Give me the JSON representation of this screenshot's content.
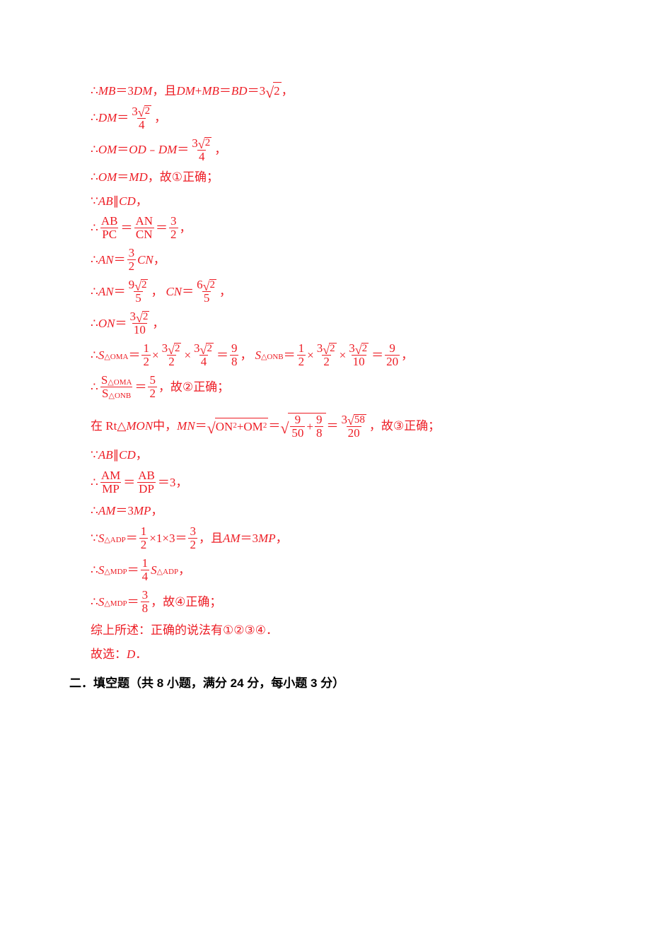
{
  "c": {
    "text_color": "#ed1c24",
    "header_color": "#000000",
    "bg": "#ffffff"
  },
  "t": {
    "l1a": "∴",
    "l1b": "MB",
    "l1c": "＝3",
    "l1d": "DM",
    "l1e": "，且 ",
    "l1f": "DM",
    "l1g": "+",
    "l1h": "MB",
    "l1i": "＝",
    "l1j": "BD",
    "l1k": "＝3",
    "l1_sqrt": "2",
    "l1l": "，",
    "l2a": "∴",
    "l2b": "DM",
    "l2c": "＝",
    "l2_num": "3",
    "l2_sqrt": "2",
    "l2_den": "4",
    "l2d": "，",
    "l3a": "∴",
    "l3b": "OM",
    "l3c": "＝",
    "l3d": "OD",
    "l3e": "﹣",
    "l3f": "DM",
    "l3g": "＝",
    "l3_num": "3",
    "l3_sqrt": "2",
    "l3_den": "4",
    "l3h": "，",
    "l4a": "∴",
    "l4b": "OM",
    "l4c": "＝",
    "l4d": "MD",
    "l4e": "，故 ",
    "l4f": "①",
    "l4g": " 正确；",
    "l5a": "∵",
    "l5b": "AB",
    "l5c": "∥",
    "l5d": "CD",
    "l5e": "，",
    "l6a": "∴",
    "l6_n1": "AB",
    "l6_d1": "PC",
    "l6b": "＝",
    "l6_n2": "AN",
    "l6_d2": "CN",
    "l6c": "＝",
    "l6_n3": "3",
    "l6_d3": "2",
    "l6d": "，",
    "l7a": "∴",
    "l7b": "AN",
    "l7c": "＝",
    "l7_n": "3",
    "l7_d": "2",
    "l7d": "CN",
    "l7e": "，",
    "l8a": "∴",
    "l8b": "AN",
    "l8c": "＝",
    "l8_n1": "9",
    "l8_s1": "2",
    "l8_d1": "5",
    "l8d": "，",
    "l8e": "CN",
    "l8f": "＝",
    "l8_n2": "6",
    "l8_s2": "2",
    "l8_d2": "5",
    "l8g": "，",
    "l9a": "∴",
    "l9b": "ON",
    "l9c": "＝",
    "l9_n": "3",
    "l9_s": "2",
    "l9_d": "10",
    "l9d": "，",
    "l10a": "∴",
    "l10b": "S",
    "l10sub1": "△OMA",
    "l10c": "＝",
    "l10_f1n": "1",
    "l10_f1d": "2",
    "l10d": "×",
    "l10_f2n": "3",
    "l10_f2s": "2",
    "l10_f2d": "2",
    "l10e": "×",
    "l10_f3n": "3",
    "l10_f3s": "2",
    "l10_f3d": "4",
    "l10f": "＝",
    "l10_f4n": "9",
    "l10_f4d": "8",
    "l10g": "，",
    "l10h": "S",
    "l10sub2": "△ONB",
    "l10i": "＝",
    "l10_f5n": "1",
    "l10_f5d": "2",
    "l10j": "×",
    "l10_f6n": "3",
    "l10_f6s": "2",
    "l10_f6d": "2",
    "l10k": "×",
    "l10_f7n": "3",
    "l10_f7s": "2",
    "l10_f7d": "10",
    "l10l": "＝",
    "l10_f8n": "9",
    "l10_f8d": "20",
    "l10m": "，",
    "l11a": "∴",
    "l11_n": "S",
    "l11_nsub": "△OMA",
    "l11_d": "S",
    "l11_dsub": "△ONB",
    "l11b": "＝",
    "l11_fn": "5",
    "l11_fd": "2",
    "l11c": "，故 ",
    "l11d": "②",
    "l11e": " 正确；",
    "l12a": "在 Rt",
    "l12b": "△",
    "l12c": "MON",
    "l12d": " 中，",
    "l12e": "MN",
    "l12f": "＝",
    "l12_r1a": "ON",
    "l12_r1sq": "2",
    "l12_r1p": "+",
    "l12_r1b": "OM",
    "l12_r1sq2": "2",
    "l12g": "＝",
    "l12_r2a": "9",
    "l12_r2b": "50",
    "l12_r2p": "+",
    "l12_r2c": "9",
    "l12_r2d": "8",
    "l12h": "＝",
    "l12_fn": "3",
    "l12_fs": "58",
    "l12_fd": "20",
    "l12i": "，故 ",
    "l12j": "③",
    "l12k": " 正确；",
    "l13a": "∵",
    "l13b": "AB",
    "l13c": "∥",
    "l13d": "CD",
    "l13e": "，",
    "l14a": "∴",
    "l14_n1": "AM",
    "l14_d1": "MP",
    "l14b": "＝",
    "l14_n2": "AB",
    "l14_d2": "DP",
    "l14c": "＝3，",
    "l15a": "∴",
    "l15b": "AM",
    "l15c": "＝3",
    "l15d": "MP",
    "l15e": "，",
    "l16a": "∵",
    "l16b": "S",
    "l16sub": "△ADP",
    "l16c": "＝",
    "l16_fn": "1",
    "l16_fd": "2",
    "l16d": "×1×3＝",
    "l16_fn2": "3",
    "l16_fd2": "2",
    "l16e": "，且 ",
    "l16f": "AM",
    "l16g": "＝3",
    "l16h": "MP",
    "l16i": "，",
    "l17a": "∴",
    "l17b": "S",
    "l17sub": "△MDP",
    "l17c": "＝",
    "l17_fn": "1",
    "l17_fd": "4",
    "l17d": "S",
    "l17sub2": "△ADP",
    "l17e": "，",
    "l18a": "∴",
    "l18b": "S",
    "l18sub": "△MDP",
    "l18c": "＝",
    "l18_fn": "3",
    "l18_fd": "8",
    "l18d": "，故 ",
    "l18e": "④",
    "l18f": " 正确；",
    "l19": "综上所述：正确的说法有",
    "l19a": "①②③④",
    "l19b": "．",
    "l20": "故选：",
    "l20b": "D",
    "l20c": "．",
    "header": "二．填空题（共 8 小题，满分 24 分，每小题 3 分）"
  }
}
